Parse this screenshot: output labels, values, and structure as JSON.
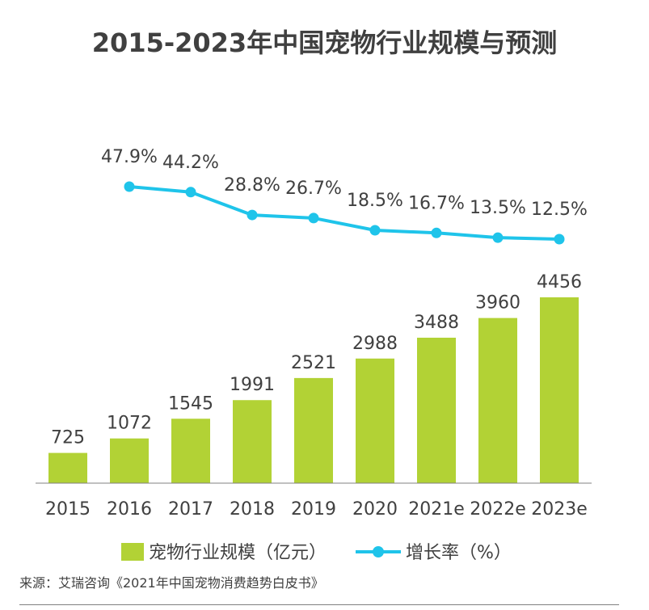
{
  "title": "2015-2023年中国宠物行业规模与预测",
  "chart_data": {
    "type": "bar+line",
    "categories": [
      "2015",
      "2016",
      "2017",
      "2018",
      "2019",
      "2020",
      "2021e",
      "2022e",
      "2023e"
    ],
    "series": [
      {
        "name": "宠物行业规模（亿元）",
        "type": "bar",
        "color": "#b2d235",
        "values": [
          725,
          1072,
          1545,
          1991,
          2521,
          2988,
          3488,
          3960,
          4456
        ]
      },
      {
        "name": "增长率（%）",
        "type": "line",
        "color": "#1fc4ea",
        "values": [
          null,
          47.9,
          44.2,
          28.8,
          26.7,
          18.5,
          16.7,
          13.5,
          12.5
        ],
        "labels": [
          null,
          "47.9%",
          "44.2%",
          "28.8%",
          "26.7%",
          "18.5%",
          "16.7%",
          "13.5%",
          "12.5%"
        ]
      }
    ],
    "legend": [
      "宠物行业规模（亿元）",
      "增长率（%）"
    ],
    "legend_position": "bottom",
    "grid": false
  },
  "source": "来源：艾瑞咨询《2021年中国宠物消费趋势白皮书》"
}
